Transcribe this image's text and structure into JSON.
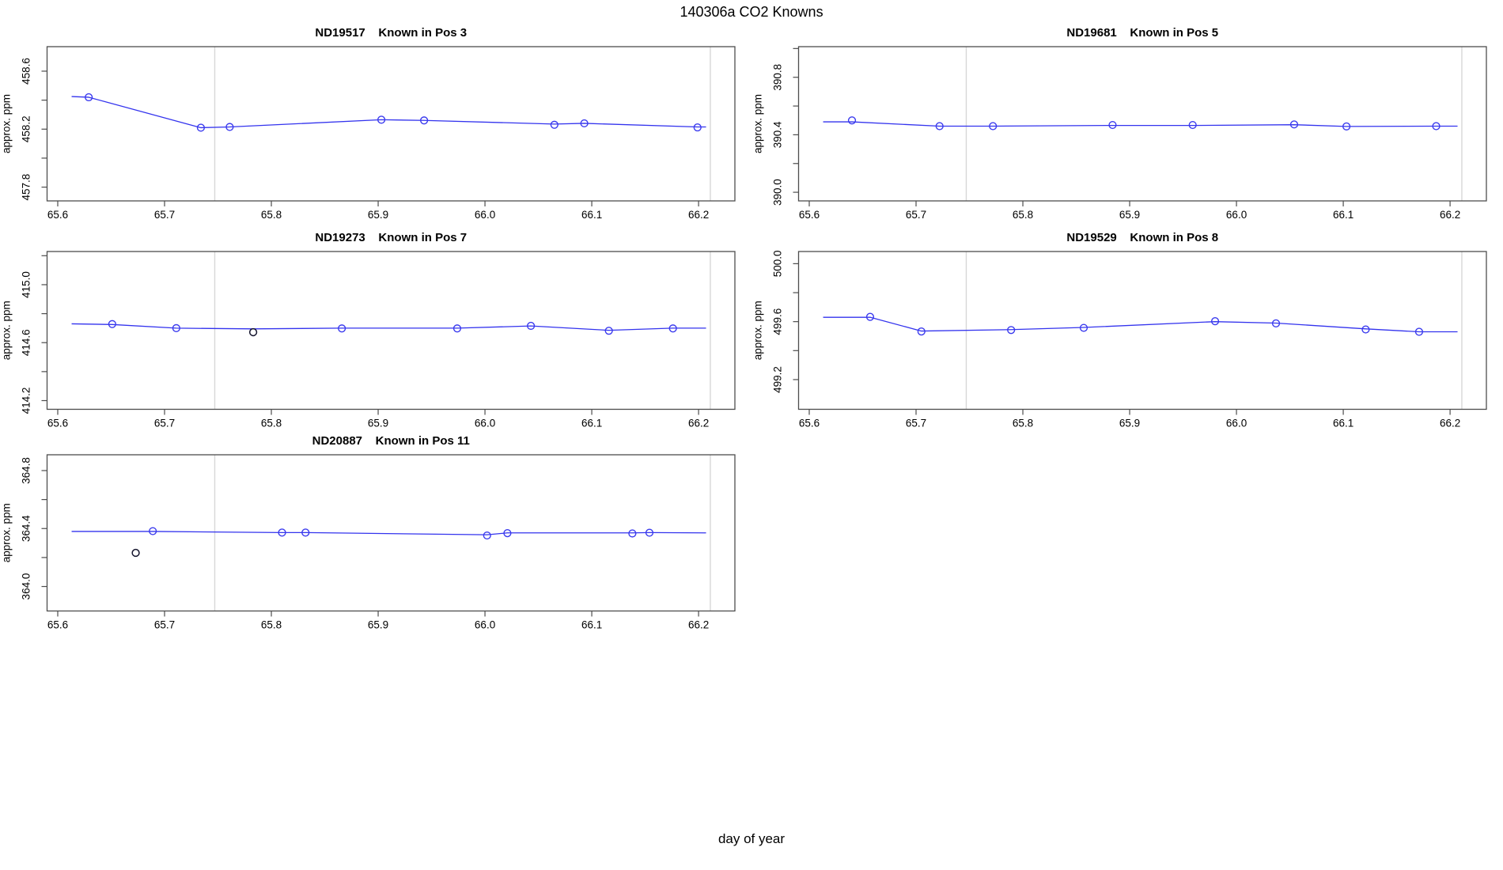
{
  "main_title": "140306a   CO2 Knowns",
  "y_axis_label": "approx. ppm",
  "x_axis": {
    "label": "day of year",
    "lim": [
      65.59,
      66.234
    ],
    "ticks": [
      65.6,
      65.7,
      65.8,
      65.9,
      66.0,
      66.1,
      66.2
    ],
    "gridlines": [
      65.747,
      66.211
    ]
  },
  "colors": {
    "line": "#3333ee",
    "point": "#3a3aee",
    "outlier": "#15152e",
    "grid": "#d7d7d7",
    "box": "#4d4d4d",
    "text": "#000000",
    "background": "#ffffff"
  },
  "chart_data": [
    {
      "type": "line",
      "name": "ND19517",
      "label": "Known in Pos 3",
      "title": "ND19517   Known in Pos 3",
      "ylabel": "approx. ppm",
      "xlabel": "day of year",
      "ylim": [
        457.705,
        458.769
      ],
      "yticks": [
        457.8,
        458.0,
        458.2,
        458.4,
        458.6
      ],
      "ytick_labels": [
        "457.8",
        "",
        "458.2",
        "",
        "458.6"
      ],
      "points": [
        [
          65.629,
          458.42
        ],
        [
          65.734,
          458.21
        ],
        [
          65.761,
          458.215
        ],
        [
          65.903,
          458.265
        ],
        [
          65.943,
          458.26
        ],
        [
          66.065,
          458.23
        ],
        [
          66.093,
          458.24
        ],
        [
          66.199,
          458.212
        ]
      ],
      "outliers": [],
      "line": [
        [
          65.613,
          458.425
        ],
        [
          65.629,
          458.42
        ],
        [
          65.734,
          458.21
        ],
        [
          65.761,
          458.215
        ],
        [
          65.903,
          458.265
        ],
        [
          65.943,
          458.26
        ],
        [
          66.065,
          458.235
        ],
        [
          66.093,
          458.24
        ],
        [
          66.199,
          458.215
        ],
        [
          66.207,
          458.215
        ]
      ]
    },
    {
      "type": "line",
      "name": "ND19681",
      "label": "Known in Pos 5",
      "title": "ND19681   Known in Pos 5",
      "ylabel": "approx. ppm",
      "xlabel": "day of year",
      "ylim": [
        389.94,
        391.013
      ],
      "yticks": [
        390.0,
        390.2,
        390.4,
        390.6,
        390.8,
        391.0
      ],
      "ytick_labels": [
        "390.0",
        "",
        "390.4",
        "",
        "390.8",
        ""
      ],
      "points": [
        [
          65.64,
          390.5
        ],
        [
          65.722,
          390.46
        ],
        [
          65.772,
          390.46
        ],
        [
          65.884,
          390.468
        ],
        [
          65.959,
          390.468
        ],
        [
          66.054,
          390.472
        ],
        [
          66.103,
          390.458
        ],
        [
          66.187,
          390.46
        ]
      ],
      "outliers": [],
      "line": [
        [
          65.613,
          390.49
        ],
        [
          65.64,
          390.49
        ],
        [
          65.722,
          390.46
        ],
        [
          65.772,
          390.46
        ],
        [
          65.884,
          390.465
        ],
        [
          65.959,
          390.465
        ],
        [
          66.054,
          390.47
        ],
        [
          66.103,
          390.458
        ],
        [
          66.187,
          390.46
        ],
        [
          66.207,
          390.46
        ]
      ]
    },
    {
      "type": "line",
      "name": "ND19273",
      "label": "Known in Pos 7",
      "title": "ND19273   Known in Pos 7",
      "ylabel": "approx. ppm",
      "xlabel": "day of year",
      "ylim": [
        414.14,
        415.229
      ],
      "yticks": [
        414.2,
        414.4,
        414.6,
        414.8,
        415.0,
        415.2
      ],
      "ytick_labels": [
        "414.2",
        "",
        "414.6",
        "",
        "415.0",
        ""
      ],
      "points": [
        [
          65.651,
          414.728
        ],
        [
          65.711,
          414.7
        ],
        [
          65.866,
          414.698
        ],
        [
          65.974,
          414.698
        ],
        [
          66.043,
          414.716
        ],
        [
          66.116,
          414.682
        ],
        [
          66.176,
          414.698
        ]
      ],
      "outliers": [
        [
          65.783,
          414.672
        ]
      ],
      "line": [
        [
          65.613,
          414.73
        ],
        [
          65.651,
          414.725
        ],
        [
          65.711,
          414.7
        ],
        [
          65.783,
          414.695
        ],
        [
          65.866,
          414.7
        ],
        [
          65.974,
          414.7
        ],
        [
          66.043,
          414.715
        ],
        [
          66.116,
          414.685
        ],
        [
          66.176,
          414.7
        ],
        [
          66.207,
          414.7
        ]
      ]
    },
    {
      "type": "line",
      "name": "ND19529",
      "label": "Known in Pos 8",
      "title": "ND19529   Known in Pos 8",
      "ylabel": "approx. ppm",
      "xlabel": "day of year",
      "ylim": [
        498.995,
        500.084
      ],
      "yticks": [
        499.2,
        499.4,
        499.6,
        499.8,
        500.0
      ],
      "ytick_labels": [
        "499.2",
        "",
        "499.6",
        "",
        "500.0"
      ],
      "points": [
        [
          65.657,
          499.633
        ],
        [
          65.705,
          499.532
        ],
        [
          65.789,
          499.542
        ],
        [
          65.857,
          499.557
        ],
        [
          65.98,
          499.603
        ],
        [
          66.037,
          499.588
        ],
        [
          66.121,
          499.546
        ],
        [
          66.171,
          499.53
        ]
      ],
      "outliers": [],
      "line": [
        [
          65.613,
          499.63
        ],
        [
          65.657,
          499.63
        ],
        [
          65.705,
          499.535
        ],
        [
          65.789,
          499.545
        ],
        [
          65.857,
          499.56
        ],
        [
          65.98,
          499.6
        ],
        [
          66.037,
          499.59
        ],
        [
          66.121,
          499.55
        ],
        [
          66.171,
          499.53
        ],
        [
          66.207,
          499.53
        ]
      ]
    },
    {
      "type": "line",
      "name": "ND20887",
      "label": "Known in Pos 11",
      "title": "ND20887   Known in Pos 11",
      "ylabel": "approx. ppm",
      "xlabel": "day of year",
      "ylim": [
        363.831,
        364.909
      ],
      "yticks": [
        364.0,
        364.2,
        364.4,
        364.6,
        364.8
      ],
      "ytick_labels": [
        "364.0",
        "",
        "364.4",
        "",
        "364.8"
      ],
      "points": [
        [
          65.689,
          364.382
        ],
        [
          65.81,
          364.372
        ],
        [
          65.832,
          364.372
        ],
        [
          66.002,
          364.352
        ],
        [
          66.021,
          364.368
        ],
        [
          66.138,
          364.366
        ],
        [
          66.154,
          364.371
        ]
      ],
      "outliers": [
        [
          65.673,
          364.232
        ]
      ],
      "line": [
        [
          65.613,
          364.38
        ],
        [
          65.689,
          364.38
        ],
        [
          65.81,
          364.372
        ],
        [
          65.832,
          364.372
        ],
        [
          66.002,
          364.357
        ],
        [
          66.021,
          364.37
        ],
        [
          66.138,
          364.37
        ],
        [
          66.154,
          364.372
        ],
        [
          66.207,
          364.37
        ]
      ]
    }
  ]
}
